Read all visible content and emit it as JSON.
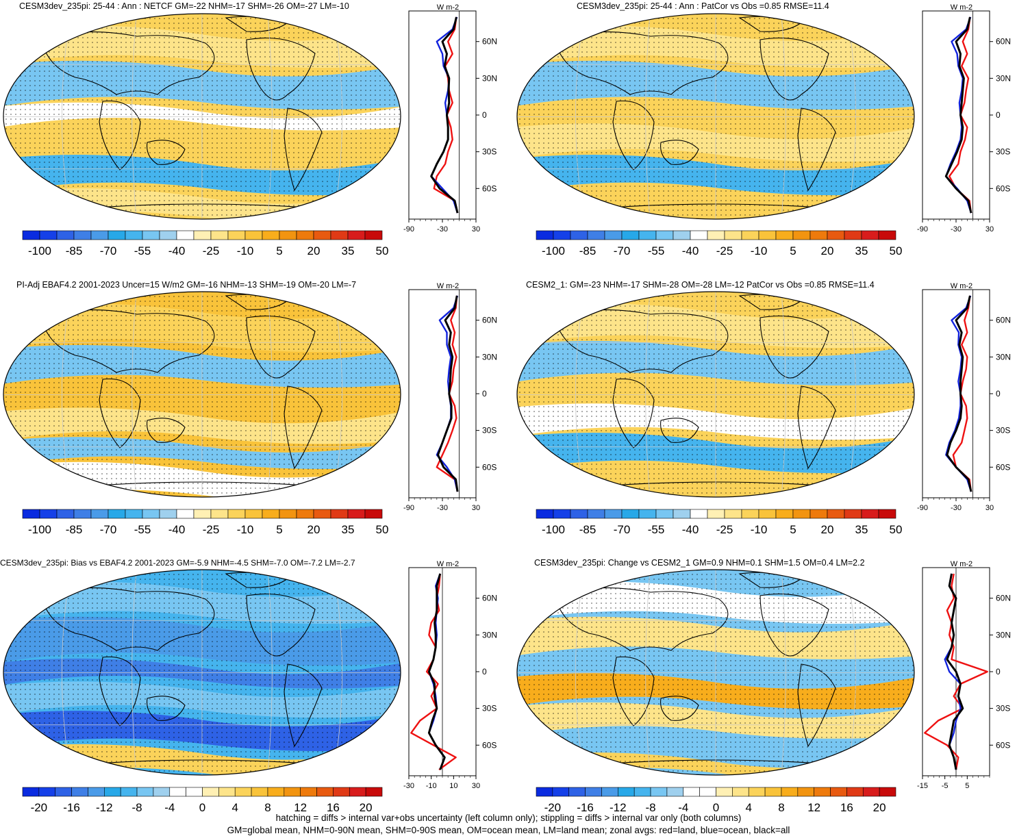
{
  "colors": {
    "cb_main": [
      "#0a2be0",
      "#1540e8",
      "#2e62e6",
      "#3f7fe6",
      "#4a9be8",
      "#27a8e8",
      "#45b4ee",
      "#78c6f2",
      "#9fd0ee",
      "#ffffff",
      "#fff0b4",
      "#fde48a",
      "#fbd35a",
      "#f9c33a",
      "#f8ad1c",
      "#f29410",
      "#ee7a0c",
      "#e85a10",
      "#e03a16",
      "#d81c1c",
      "#c80a0a"
    ],
    "cb_diff": [
      "#0a2be0",
      "#1540e8",
      "#2e62e6",
      "#3f7fe6",
      "#4a9be8",
      "#27a8e8",
      "#45b4ee",
      "#78c6f2",
      "#9fd0ee",
      "#ffffff",
      "#ffffff",
      "#fff0b4",
      "#fde48a",
      "#fbd35a",
      "#f9c33a",
      "#f8ad1c",
      "#f29410",
      "#ee7a0c",
      "#e85a10",
      "#e03a16",
      "#d81c1c",
      "#c80a0a"
    ],
    "land_line": "#000000",
    "zonal_land": "#ee1111",
    "zonal_ocean": "#1122dd",
    "zonal_all": "#000000"
  },
  "panels": [
    {
      "title": "CESM3dev_235pi: 25-44 : Ann : NETCF GM=-22 NHM=-17 SHM=-26 OM=-27 LM=-10",
      "colorbar_labels": [
        "-100",
        "-85",
        "-70",
        "-55",
        "-40",
        "-25",
        "-10",
        "5",
        "20",
        "35",
        "50"
      ],
      "colorbar_type": "main",
      "zonal_unit": "W m-2",
      "zonal_xticks": [
        "-90",
        "-30",
        "30"
      ],
      "lat_labels": [
        "60N",
        "30N",
        "0",
        "30S",
        "60S"
      ],
      "chart_data": {
        "type": "line",
        "xlabel": "W m-2",
        "xlim": [
          -90,
          30
        ],
        "x_is_latitude": false,
        "lat": [
          80,
          70,
          60,
          50,
          40,
          30,
          20,
          10,
          0,
          -10,
          -20,
          -30,
          -40,
          -50,
          -60,
          -70,
          -80
        ],
        "series": [
          {
            "name": "land",
            "values": [
              -5,
              -8,
              -20,
              -12,
              -25,
              -20,
              -18,
              -12,
              -22,
              -15,
              -12,
              -20,
              -25,
              -40,
              -45,
              -8,
              -3
            ]
          },
          {
            "name": "ocean",
            "values": [
              -4,
              -12,
              -40,
              -30,
              -28,
              -18,
              -20,
              -25,
              -22,
              -20,
              -20,
              -28,
              -40,
              -50,
              -30,
              -10,
              -3
            ]
          },
          {
            "name": "all",
            "values": [
              -5,
              -10,
              -30,
              -22,
              -26,
              -18,
              -19,
              -18,
              -22,
              -20,
              -20,
              -28,
              -40,
              -50,
              -35,
              -8,
              -3
            ]
          }
        ]
      }
    },
    {
      "title": "CESM3dev_235pi: 25-44 : Ann : PatCor vs Obs =0.85 RMSE=11.4",
      "colorbar_labels": [
        "-100",
        "-85",
        "-70",
        "-55",
        "-40",
        "-25",
        "-10",
        "5",
        "20",
        "35",
        "50"
      ],
      "colorbar_type": "main",
      "zonal_unit": "W m-2",
      "zonal_xticks": [
        "-90",
        "-30",
        "30"
      ],
      "lat_labels": [
        "60N",
        "30N",
        "0",
        "30S",
        "60S"
      ],
      "chart_data": {
        "type": "line",
        "xlabel": "W m-2",
        "xlim": [
          -90,
          30
        ],
        "lat": [
          80,
          70,
          60,
          50,
          40,
          30,
          20,
          10,
          0,
          -10,
          -20,
          -30,
          -40,
          -50,
          -60,
          -70,
          -80
        ],
        "series": [
          {
            "name": "land",
            "values": [
              -5,
              -8,
              -18,
              -10,
              -20,
              -8,
              -12,
              -15,
              -22,
              -10,
              -14,
              -22,
              -26,
              -42,
              -30,
              -6,
              -3
            ]
          },
          {
            "name": "ocean",
            "values": [
              -4,
              -12,
              -38,
              -28,
              -26,
              -18,
              -20,
              -24,
              -22,
              -20,
              -22,
              -30,
              -40,
              -48,
              -28,
              -10,
              -3
            ]
          },
          {
            "name": "all",
            "values": [
              -5,
              -10,
              -30,
              -22,
              -24,
              -16,
              -18,
              -20,
              -22,
              -18,
              -20,
              -28,
              -38,
              -48,
              -30,
              -8,
              -3
            ]
          }
        ]
      }
    },
    {
      "title": "PI-Adj EBAF4.2 2001-2023 Uncer=15 W/m2 GM=-16 NHM=-13 SHM=-19 OM=-20 LM=-7",
      "colorbar_labels": [
        "-100",
        "-85",
        "-70",
        "-55",
        "-40",
        "-25",
        "-10",
        "5",
        "20",
        "35",
        "50"
      ],
      "colorbar_type": "main",
      "zonal_unit": "W m-2",
      "zonal_xticks": [
        "-90",
        "-30",
        "30"
      ],
      "lat_labels": [
        "60N",
        "30N",
        "0",
        "30S",
        "60S"
      ],
      "chart_data": {
        "type": "line",
        "xlabel": "W m-2",
        "xlim": [
          -90,
          30
        ],
        "lat": [
          80,
          70,
          60,
          50,
          40,
          30,
          20,
          10,
          0,
          -10,
          -20,
          -30,
          -40,
          -50,
          -60,
          -70,
          -80
        ],
        "series": [
          {
            "name": "land",
            "values": [
              -4,
              -6,
              -15,
              -8,
              -12,
              -5,
              -10,
              -12,
              -18,
              -8,
              -5,
              -12,
              -20,
              -30,
              -40,
              -8,
              -3
            ]
          },
          {
            "name": "ocean",
            "values": [
              -3,
              -10,
              -35,
              -22,
              -22,
              -15,
              -18,
              -20,
              -18,
              -15,
              -15,
              -22,
              -30,
              -40,
              -22,
              -8,
              -3
            ]
          },
          {
            "name": "all",
            "values": [
              -4,
              -8,
              -25,
              -15,
              -18,
              -12,
              -15,
              -16,
              -18,
              -14,
              -14,
              -22,
              -30,
              -38,
              -28,
              -6,
              -3
            ]
          }
        ]
      }
    },
    {
      "title": "CESM2_1: GM=-23 NHM=-17 SHM=-28 OM=-28 LM=-12 PatCor vs Obs =0.85 RMSE=11.4",
      "colorbar_labels": [
        "-100",
        "-85",
        "-70",
        "-55",
        "-40",
        "-25",
        "-10",
        "5",
        "20",
        "35",
        "50"
      ],
      "colorbar_type": "main",
      "zonal_unit": "W m-2",
      "zonal_xticks": [
        "-90",
        "-30",
        "30"
      ],
      "lat_labels": [
        "60N",
        "30N",
        "0",
        "30S",
        "60S"
      ],
      "chart_data": {
        "type": "line",
        "xlabel": "W m-2",
        "xlim": [
          -90,
          30
        ],
        "lat": [
          80,
          70,
          60,
          50,
          40,
          30,
          20,
          10,
          0,
          -10,
          -20,
          -30,
          -40,
          -50,
          -60,
          -70,
          -80
        ],
        "series": [
          {
            "name": "land",
            "values": [
              -5,
              -8,
              -15,
              -10,
              -20,
              -10,
              -12,
              -18,
              -22,
              -12,
              -10,
              -15,
              -20,
              -35,
              -30,
              -6,
              -3
            ]
          },
          {
            "name": "ocean",
            "values": [
              -4,
              -12,
              -38,
              -25,
              -26,
              -20,
              -22,
              -26,
              -22,
              -22,
              -25,
              -32,
              -42,
              -48,
              -30,
              -10,
              -3
            ]
          },
          {
            "name": "all",
            "values": [
              -5,
              -10,
              -30,
              -20,
              -24,
              -18,
              -20,
              -22,
              -22,
              -20,
              -22,
              -30,
              -40,
              -46,
              -30,
              -8,
              -3
            ]
          }
        ]
      }
    },
    {
      "title": "CESM3dev_235pi: Bias vs EBAF4.2 2001-2023 GM=-5.9 NHM=-4.5 SHM=-7.0 OM=-7.2 LM=-2.7",
      "colorbar_labels": [
        "-20",
        "-16",
        "-12",
        "-8",
        "-4",
        "0",
        "4",
        "8",
        "12",
        "16",
        "20"
      ],
      "colorbar_type": "diff",
      "zonal_unit": "W m-2",
      "zonal_xticks": [
        "-30",
        "-10",
        "10",
        "30"
      ],
      "lat_labels": [
        "60N",
        "30N",
        "0",
        "30S",
        "60S"
      ],
      "chart_data": {
        "type": "line",
        "xlabel": "W m-2",
        "xlim": [
          -30,
          30
        ],
        "lat": [
          80,
          70,
          60,
          50,
          40,
          30,
          20,
          10,
          0,
          -10,
          -20,
          -30,
          -40,
          -50,
          -60,
          -70,
          -80
        ],
        "series": [
          {
            "name": "land",
            "values": [
              -2,
              -3,
              -5,
              -3,
              -10,
              -12,
              -6,
              -8,
              -14,
              -4,
              -10,
              -5,
              -20,
              -28,
              -8,
              12,
              -3
            ]
          },
          {
            "name": "ocean",
            "values": [
              -2,
              -6,
              -4,
              -5,
              -6,
              -5,
              -6,
              -8,
              -12,
              -8,
              -6,
              -5,
              -8,
              -12,
              -6,
              2,
              -2
            ]
          },
          {
            "name": "all",
            "values": [
              -2,
              -5,
              -5,
              -5,
              -7,
              -6,
              -6,
              -8,
              -12,
              -7,
              -7,
              -5,
              -9,
              -12,
              -6,
              2,
              -2
            ]
          }
        ]
      }
    },
    {
      "title": "CESM3dev_235pi: Change vs CESM2_1 GM=0.9 NHM=0.1 SHM=1.5 OM=0.4 LM=2.2",
      "colorbar_labels": [
        "-20",
        "-16",
        "-12",
        "-8",
        "-4",
        "0",
        "4",
        "8",
        "12",
        "16",
        "20"
      ],
      "colorbar_type": "diff",
      "zonal_unit": "W m-2",
      "zonal_xticks": [
        "-15",
        "-5",
        "5"
      ],
      "lat_labels": [
        "60N",
        "30N",
        "0",
        "30S",
        "60S"
      ],
      "chart_data": {
        "type": "line",
        "xlabel": "W m-2",
        "xlim": [
          -15,
          15
        ],
        "lat": [
          80,
          70,
          60,
          50,
          40,
          30,
          20,
          10,
          0,
          -10,
          -20,
          -30,
          -40,
          -50,
          -60,
          -70,
          -80
        ],
        "series": [
          {
            "name": "land",
            "values": [
              -1,
              -2,
              -1,
              -4,
              -2,
              -3,
              -1,
              -2,
              14,
              2,
              -1,
              3,
              -8,
              -14,
              -4,
              1,
              0
            ]
          },
          {
            "name": "ocean",
            "values": [
              -2,
              -3,
              0,
              -1,
              -2,
              -1,
              -2,
              -5,
              -3,
              2,
              1,
              2,
              0,
              -1,
              -3,
              -1,
              0
            ]
          },
          {
            "name": "all",
            "values": [
              -2,
              -3,
              0,
              -1,
              -2,
              -1,
              -2,
              -4,
              0,
              2,
              1,
              3,
              -1,
              -2,
              -3,
              -1,
              0
            ]
          }
        ]
      }
    }
  ],
  "footer": {
    "line1": "hatching = diffs > internal var+obs uncertainty (left column only); stippling = diffs > internal var only (both columns)",
    "line2": "GM=global mean, NHM=0-90N mean, SHM=0-90S mean, OM=ocean mean, LM=land mean; zonal avgs: red=land, blue=ocean, black=all"
  }
}
